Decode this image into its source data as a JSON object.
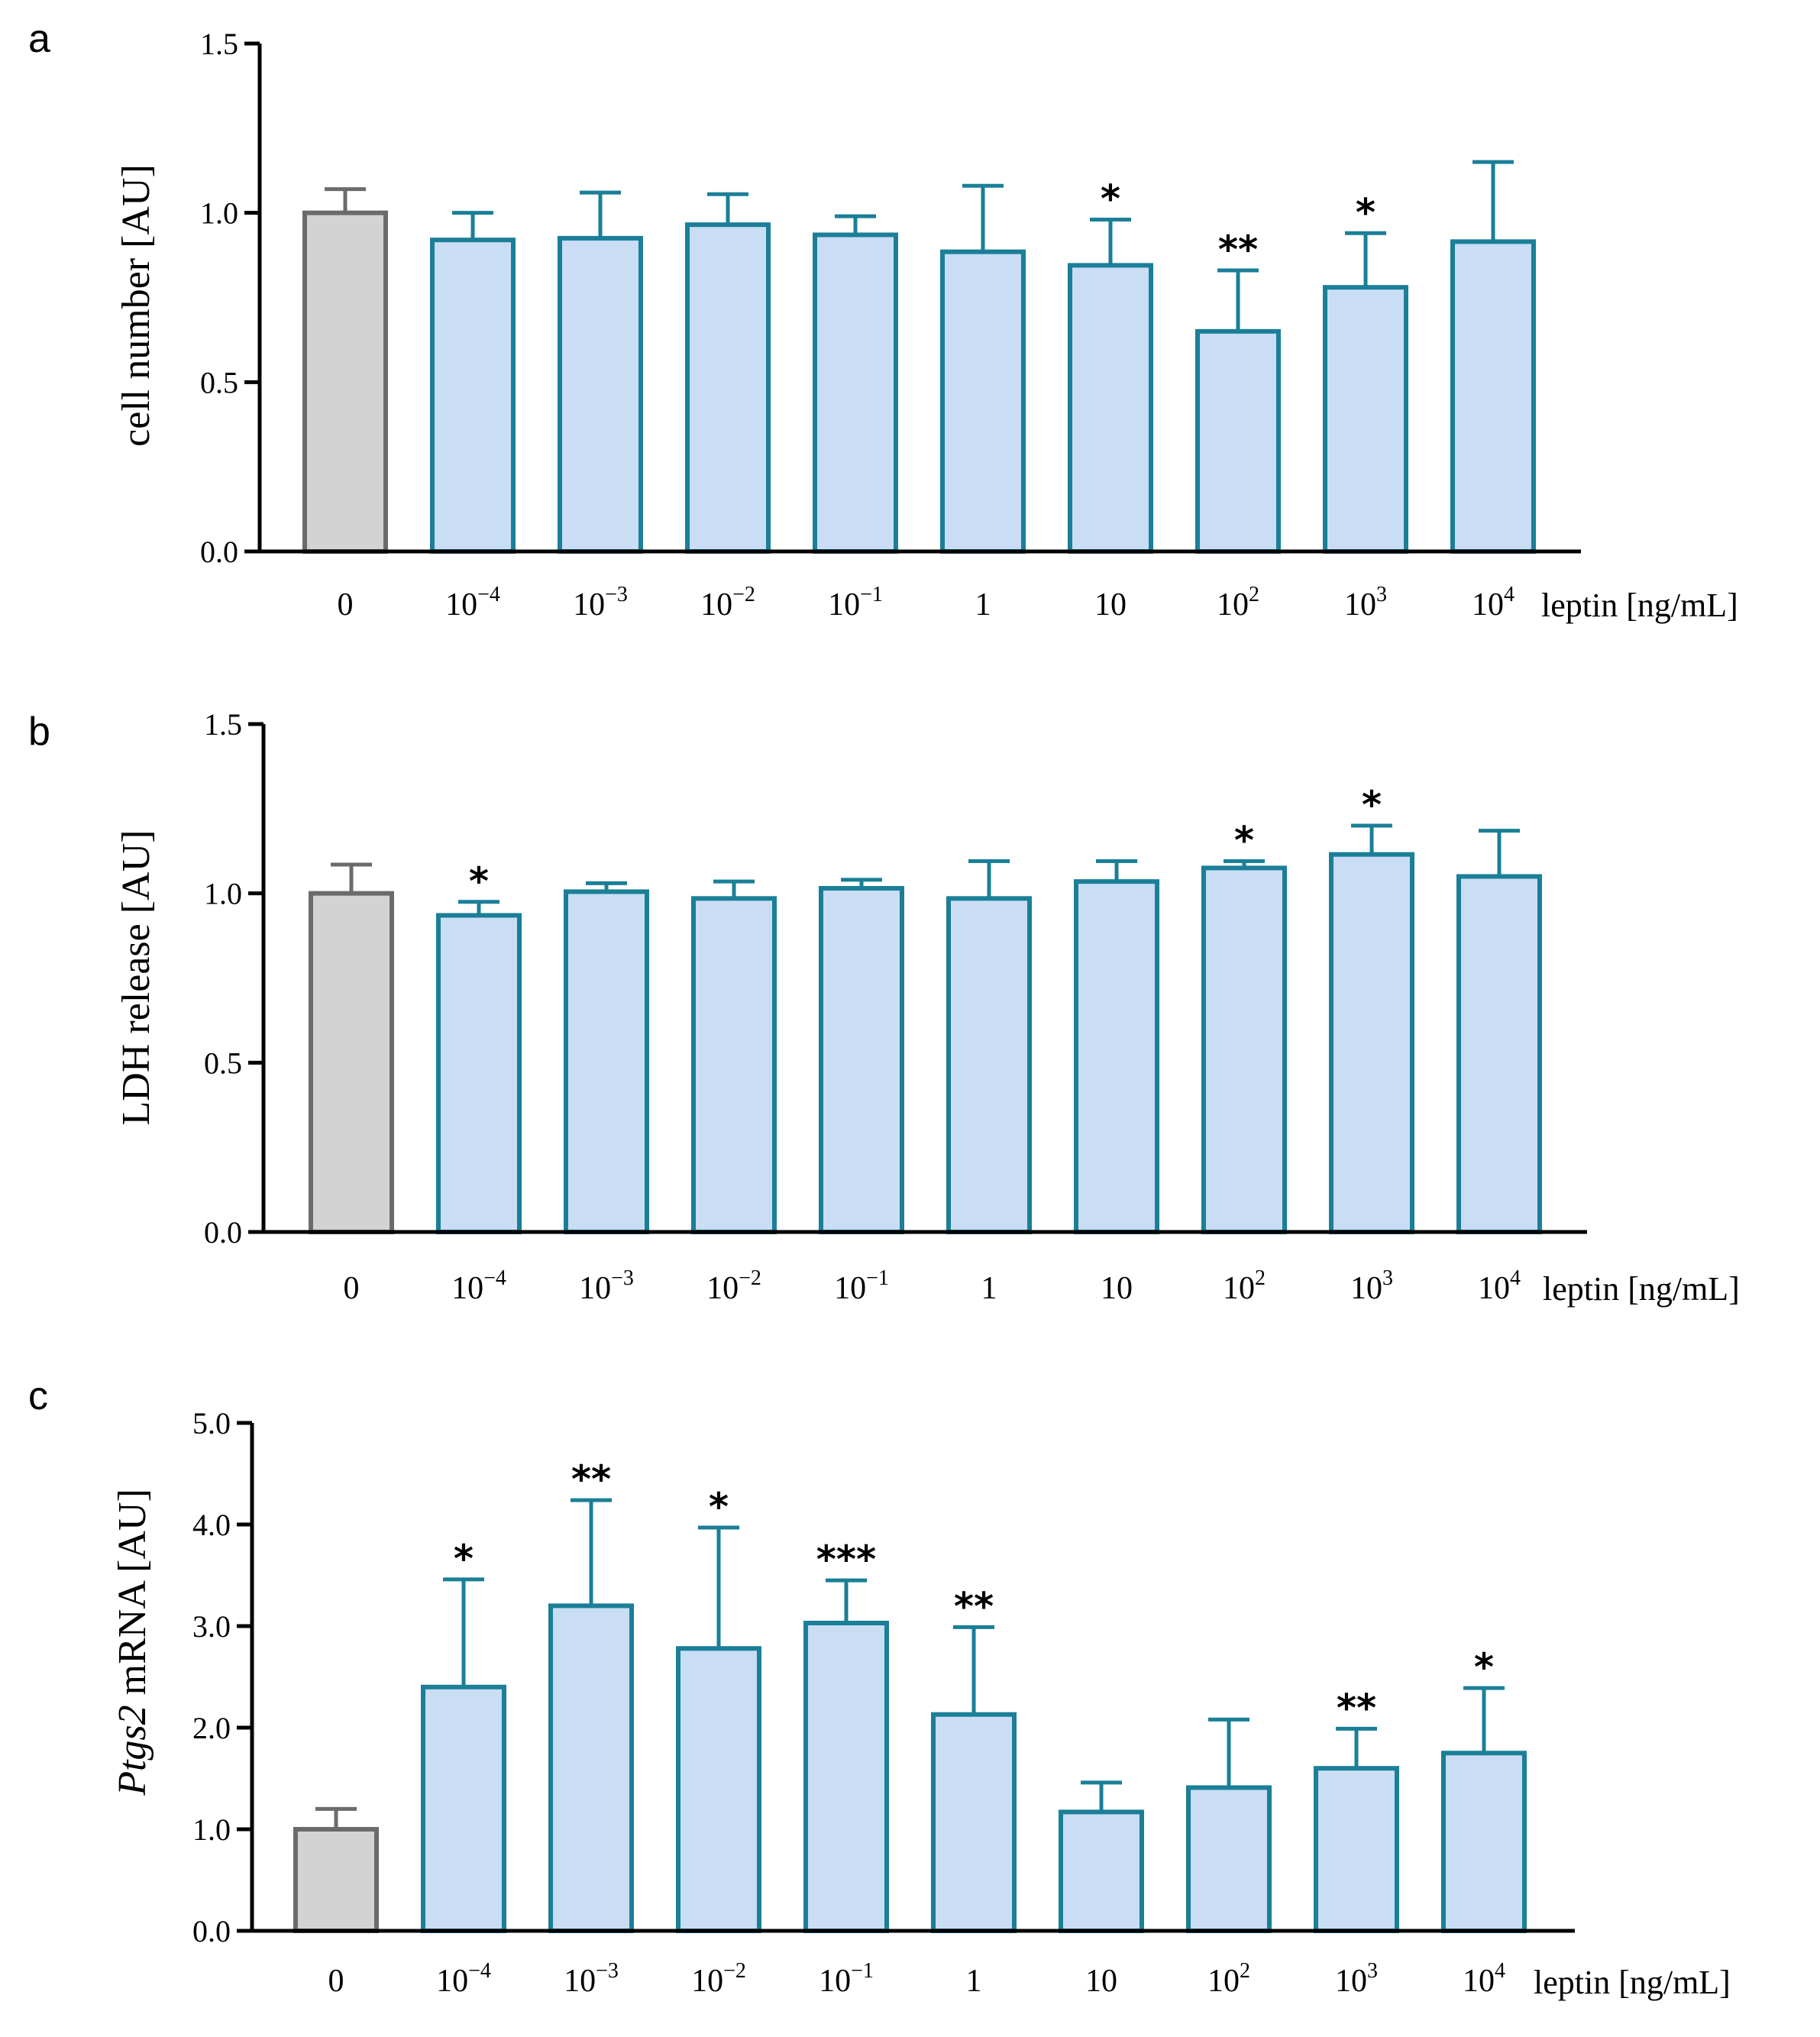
{
  "colors": {
    "control_fill": "#d3d3d3",
    "control_stroke": "#6b6b6b",
    "bar_fill": "#c9ddf5",
    "bar_stroke": "#1a7f97",
    "axis": "#000000"
  },
  "chart_data": [
    {
      "type": "bar",
      "panel": "a",
      "ylabel": "cell number [AU]",
      "xlabel": "leptin [ng/mL]",
      "ylim": [
        0,
        1.5
      ],
      "yticks": [
        "0.0",
        "0.5",
        "1.0",
        "1.5"
      ],
      "ytick_values": [
        0,
        0.5,
        1.0,
        1.5
      ],
      "categories": [
        {
          "base": "0",
          "exp": ""
        },
        {
          "base": "10",
          "exp": "−4"
        },
        {
          "base": "10",
          "exp": "−3"
        },
        {
          "base": "10",
          "exp": "−2"
        },
        {
          "base": "10",
          "exp": "−1"
        },
        {
          "base": "1",
          "exp": ""
        },
        {
          "base": "10",
          "exp": ""
        },
        {
          "base": "10",
          "exp": "2"
        },
        {
          "base": "10",
          "exp": "3"
        },
        {
          "base": "10",
          "exp": "4"
        }
      ],
      "values": [
        1.0,
        0.92,
        0.925,
        0.965,
        0.935,
        0.885,
        0.845,
        0.65,
        0.78,
        0.915
      ],
      "errors": [
        0.07,
        0.08,
        0.135,
        0.09,
        0.055,
        0.195,
        0.135,
        0.18,
        0.16,
        0.235
      ],
      "significance": [
        "",
        "",
        "",
        "",
        "",
        "",
        "*",
        "**",
        "*",
        ""
      ]
    },
    {
      "type": "bar",
      "panel": "b",
      "ylabel": "LDH release [AU]",
      "xlabel": "leptin [ng/mL]",
      "ylim": [
        0,
        1.5
      ],
      "yticks": [
        "0.0",
        "0.5",
        "1.0",
        "1.5"
      ],
      "ytick_values": [
        0,
        0.5,
        1.0,
        1.5
      ],
      "categories": [
        {
          "base": "0",
          "exp": ""
        },
        {
          "base": "10",
          "exp": "−4"
        },
        {
          "base": "10",
          "exp": "−3"
        },
        {
          "base": "10",
          "exp": "−2"
        },
        {
          "base": "10",
          "exp": "−1"
        },
        {
          "base": "1",
          "exp": ""
        },
        {
          "base": "10",
          "exp": ""
        },
        {
          "base": "10",
          "exp": "2"
        },
        {
          "base": "10",
          "exp": "3"
        },
        {
          "base": "10",
          "exp": "4"
        }
      ],
      "values": [
        1.0,
        0.935,
        1.005,
        0.985,
        1.015,
        0.985,
        1.035,
        1.075,
        1.115,
        1.05
      ],
      "errors": [
        0.085,
        0.04,
        0.025,
        0.05,
        0.025,
        0.11,
        0.06,
        0.02,
        0.085,
        0.135
      ],
      "significance": [
        "",
        "*",
        "",
        "",
        "",
        "",
        "",
        "*",
        "*",
        ""
      ]
    },
    {
      "type": "bar",
      "panel": "c",
      "ylabel_italic": "Ptgs2",
      "ylabel": " mRNA [AU]",
      "xlabel": "leptin [ng/mL]",
      "ylim": [
        0,
        5.0
      ],
      "yticks": [
        "0.0",
        "1.0",
        "2.0",
        "3.0",
        "4.0",
        "5.0"
      ],
      "ytick_values": [
        0,
        1,
        2,
        3,
        4,
        5
      ],
      "categories": [
        {
          "base": "0",
          "exp": ""
        },
        {
          "base": "10",
          "exp": "−4"
        },
        {
          "base": "10",
          "exp": "−3"
        },
        {
          "base": "10",
          "exp": "−2"
        },
        {
          "base": "10",
          "exp": "−1"
        },
        {
          "base": "1",
          "exp": ""
        },
        {
          "base": "10",
          "exp": ""
        },
        {
          "base": "10",
          "exp": "2"
        },
        {
          "base": "10",
          "exp": "3"
        },
        {
          "base": "10",
          "exp": "4"
        }
      ],
      "values": [
        1.0,
        2.4,
        3.2,
        2.78,
        3.03,
        2.13,
        1.17,
        1.41,
        1.6,
        1.75
      ],
      "errors": [
        0.2,
        1.06,
        1.04,
        1.19,
        0.42,
        0.86,
        0.29,
        0.67,
        0.39,
        0.64
      ],
      "significance": [
        "",
        "*",
        "**",
        "*",
        "***",
        "**",
        "",
        "",
        "**",
        "*"
      ]
    }
  ]
}
